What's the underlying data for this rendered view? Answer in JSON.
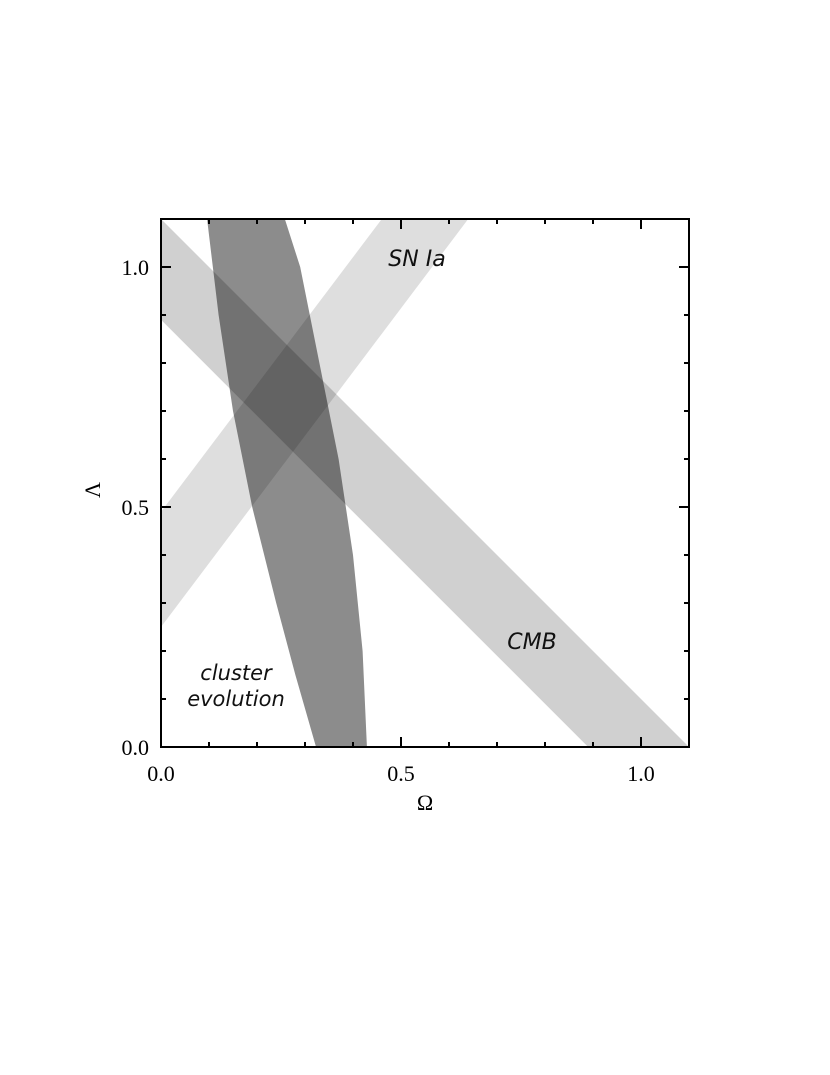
{
  "chart_data": {
    "type": "region",
    "x_label": "Ω",
    "y_label": "Λ",
    "xlim": [
      0,
      1.1
    ],
    "ylim": [
      0,
      1.1
    ],
    "xticks": [
      {
        "value": 0,
        "label": "0.0"
      },
      {
        "value": 0.5,
        "label": "0.5"
      },
      {
        "value": 1,
        "label": "1.0"
      }
    ],
    "yticks": [
      {
        "value": 0,
        "label": "0.0"
      },
      {
        "value": 0.5,
        "label": "0.5"
      },
      {
        "value": 1,
        "label": "1.0"
      }
    ],
    "xminorticks": [
      0.1,
      0.2,
      0.3,
      0.4,
      0.6,
      0.7,
      0.8,
      0.9,
      1.1
    ],
    "yminorticks": [
      0.1,
      0.2,
      0.3,
      0.4,
      0.6,
      0.7,
      0.8,
      0.9,
      1.1
    ],
    "regions": [
      {
        "name": "CMB",
        "color": "#d0d0d0",
        "x": [
          0,
          1.1,
          0.89,
          0
        ],
        "y": [
          1.1,
          0,
          0,
          0.89
        ]
      },
      {
        "name": "SN Ia",
        "color": "#dedede",
        "x": [
          0,
          0.64,
          0.46,
          0
        ],
        "y": [
          0.25,
          1.1,
          1.1,
          0.49
        ]
      },
      {
        "name": "cluster evolution",
        "color": "#8c8c8c",
        "x": [
          0.096,
          0.12,
          0.15,
          0.19,
          0.24,
          0.28,
          0.323,
          0.429,
          0.42,
          0.4,
          0.37,
          0.33,
          0.29,
          0.258
        ],
        "y": [
          1.1,
          0.9,
          0.7,
          0.5,
          0.3,
          0.15,
          0,
          0,
          0.2,
          0.4,
          0.6,
          0.8,
          1.0,
          1.1
        ]
      }
    ]
  }
}
